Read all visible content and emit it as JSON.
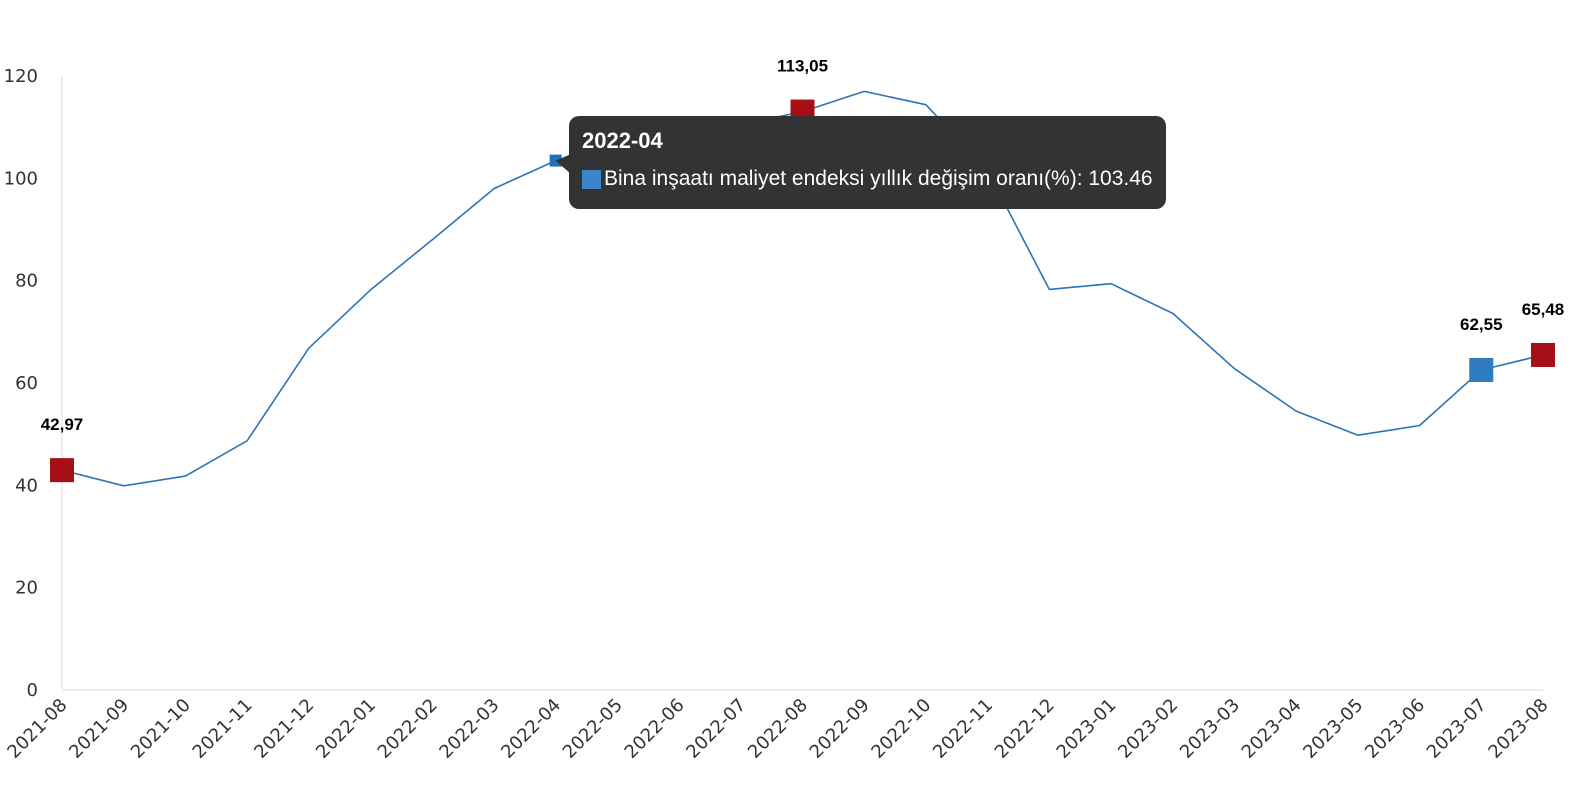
{
  "chart_data": {
    "type": "line",
    "categories": [
      "2021-08",
      "2021-09",
      "2021-10",
      "2021-11",
      "2021-12",
      "2022-01",
      "2022-02",
      "2022-03",
      "2022-04",
      "2022-05",
      "2022-06",
      "2022-07",
      "2022-08",
      "2022-09",
      "2022-10",
      "2022-11",
      "2022-12",
      "2023-01",
      "2023-02",
      "2023-03",
      "2023-04",
      "2023-05",
      "2023-06",
      "2023-07",
      "2023-08"
    ],
    "series": [
      {
        "name": "Bina inşaatı maliyet endeksi yıllık değişim oranı(%)",
        "values": [
          42.97,
          39.9,
          41.8,
          48.7,
          66.8,
          78.2,
          88.0,
          98.0,
          103.46,
          102.3,
          101.5,
          110.5,
          113.05,
          117.0,
          114.4,
          101.5,
          78.3,
          79.4,
          73.6,
          62.8,
          54.5,
          49.8,
          51.7,
          62.55,
          65.48
        ],
        "color": "#2e74b5"
      }
    ],
    "ylim": [
      0,
      120
    ],
    "yticks": [
      0,
      20,
      40,
      60,
      80,
      100,
      120
    ],
    "grid": false,
    "legend": "none",
    "highlights": [
      {
        "index": 0,
        "label": "42,97",
        "color": "#a50f15"
      },
      {
        "index": 12,
        "label": "113,05",
        "color": "#a50f15"
      },
      {
        "index": 23,
        "label": "62,55",
        "color": "#2e7bbf"
      },
      {
        "index": 24,
        "label": "65,48",
        "color": "#a50f15"
      }
    ],
    "hover_index": 8,
    "hover_color": "#1f6fbf",
    "axis_color": "#d9d9d9"
  },
  "tooltip": {
    "title": "2022-04",
    "series_label": "Bina inşaatı maliyet endeksi yıllık değişim oranı(%)",
    "value_text": "103.46",
    "swatch_color": "#3a86c8"
  }
}
